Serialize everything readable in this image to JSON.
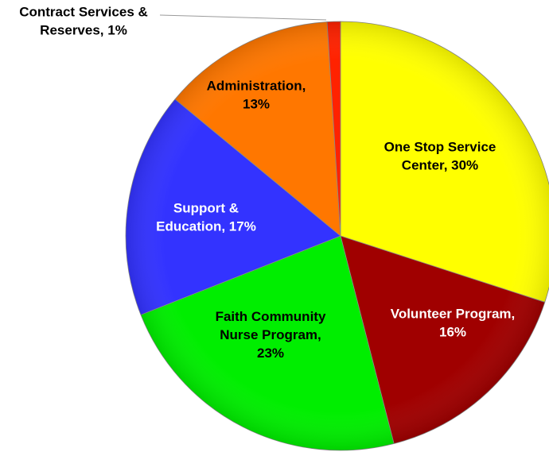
{
  "chart_data": {
    "type": "pie",
    "title": "",
    "slices": [
      {
        "name": "One Stop Service Center",
        "value": 30,
        "label_lines": [
          "One Stop Service",
          "Center, 30%"
        ],
        "color": "#FFFF00",
        "label_color": "#000000"
      },
      {
        "name": "Volunteer Program",
        "value": 16,
        "label_lines": [
          "Volunteer Program,",
          "16%"
        ],
        "color": "#A00000",
        "label_color": "#FFFFFF"
      },
      {
        "name": "Faith Community Nurse Program",
        "value": 23,
        "label_lines": [
          "Faith Community",
          "Nurse Program,",
          "23%"
        ],
        "color": "#00EE00",
        "label_color": "#000000"
      },
      {
        "name": "Support & Education",
        "value": 17,
        "label_lines": [
          "Support &",
          "Education, 17%"
        ],
        "color": "#3333FF",
        "label_color": "#FFFFFF"
      },
      {
        "name": "Administration",
        "value": 13,
        "label_lines": [
          "Administration,",
          "13%"
        ],
        "color": "#FF7700",
        "label_color": "#000000"
      },
      {
        "name": "Contract Services & Reserves",
        "value": 1,
        "label_lines": [
          "Contract Services &",
          "Reserves, 1%"
        ],
        "color": "#FF2200",
        "label_color": "#000000"
      }
    ],
    "start_angle": "12 o'clock",
    "direction": "clockwise",
    "legend": "none",
    "data_labels": "category and percentage"
  }
}
